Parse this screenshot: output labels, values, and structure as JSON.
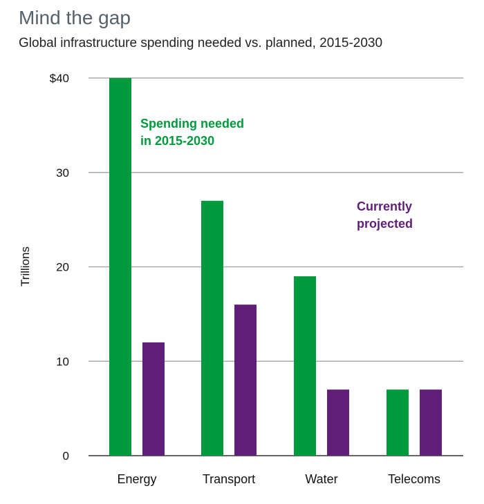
{
  "chart_data": {
    "type": "bar",
    "title": "Mind the gap",
    "subtitle": "Global infrastructure spending needed vs. planned, 2015-2030",
    "ylabel": "Trillions",
    "xlabel": "",
    "ylim": [
      0,
      40
    ],
    "yticks": [
      0,
      10,
      20,
      30,
      40
    ],
    "ytick_labels": [
      "0",
      "10",
      "20",
      "30",
      "$40"
    ],
    "grid": true,
    "categories": [
      "Energy",
      "Transport",
      "Water",
      "Telecoms"
    ],
    "series": [
      {
        "name": "Spending needed in 2015-2030",
        "label_lines": [
          "Spending needed",
          "in 2015-2030"
        ],
        "color": "#009a3e",
        "values": [
          40,
          27,
          19,
          7
        ]
      },
      {
        "name": "Currently projected",
        "label_lines": [
          "Currently",
          "projected"
        ],
        "color": "#5f1f78",
        "values": [
          12,
          16,
          7,
          7
        ]
      }
    ]
  }
}
